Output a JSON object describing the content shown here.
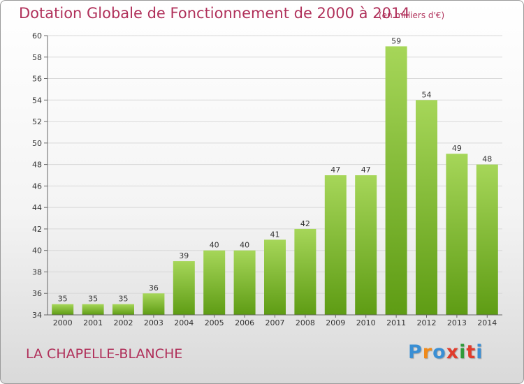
{
  "title": "Dotation Globale de Fonctionnement de 2000 à 2014",
  "subtitle": "(en milliers d'€)",
  "commune": "LA CHAPELLE-BLANCHE",
  "logo": {
    "text": "Proxiti",
    "letter_colors": [
      "#3a8fd4",
      "#f08a1a",
      "#3a8fd4",
      "#e03c2c",
      "#2f9a3a",
      "#e03c2c",
      "#3a8fd4"
    ]
  },
  "colors": {
    "title": "#b0305a",
    "bar_top": "#a6d659",
    "bar_bottom": "#5e9c14",
    "grid": "#d8d8d8"
  },
  "chart_data": {
    "type": "bar",
    "categories": [
      "2000",
      "2001",
      "2002",
      "2003",
      "2004",
      "2005",
      "2006",
      "2007",
      "2008",
      "2009",
      "2010",
      "2011",
      "2012",
      "2013",
      "2014"
    ],
    "values": [
      35,
      35,
      35,
      36,
      39,
      40,
      40,
      41,
      42,
      47,
      47,
      59,
      54,
      49,
      48
    ],
    "ylim": [
      34,
      60
    ],
    "yticks": [
      34,
      36,
      38,
      40,
      42,
      44,
      46,
      48,
      50,
      52,
      54,
      56,
      58,
      60
    ],
    "grid": true,
    "data_labels": true
  }
}
